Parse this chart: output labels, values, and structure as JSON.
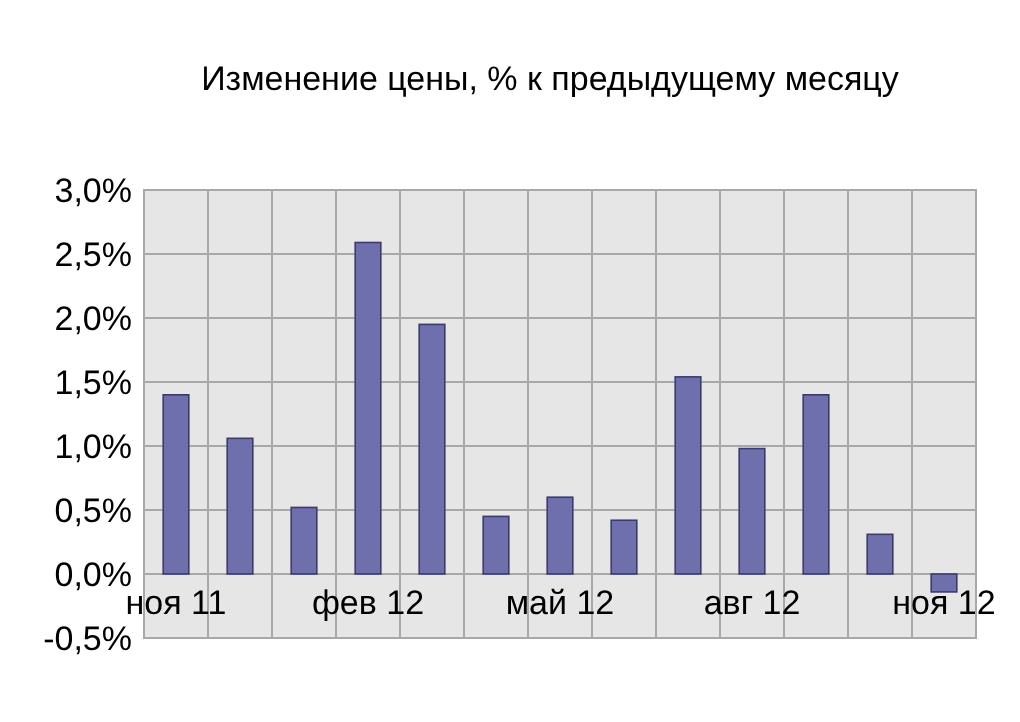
{
  "chart_data": {
    "type": "bar",
    "title": "Изменение цены, % к предыдущему месяцу",
    "categories": [
      "ноя 11",
      null,
      null,
      "фев 12",
      null,
      null,
      "май 12",
      null,
      null,
      "авг 12",
      null,
      null,
      "ноя 12"
    ],
    "values": [
      1.4,
      1.06,
      0.52,
      2.59,
      1.95,
      0.45,
      0.6,
      0.42,
      1.54,
      0.98,
      1.4,
      0.31,
      -0.14
    ],
    "color": "#6f6fae",
    "ylim": [
      -0.5,
      3.0
    ],
    "yticks": [
      {
        "value": -0.5,
        "label": "-0,5%"
      },
      {
        "value": 0,
        "label": "0,0%"
      },
      {
        "value": 0.5,
        "label": "0,5%"
      },
      {
        "value": 1.0,
        "label": "1,0%"
      },
      {
        "value": 1.5,
        "label": "1,5%"
      },
      {
        "value": 2.0,
        "label": "2,0%"
      },
      {
        "value": 2.5,
        "label": "2,5%"
      },
      {
        "value": 3.0,
        "label": "3,0%"
      }
    ],
    "grid": true
  }
}
